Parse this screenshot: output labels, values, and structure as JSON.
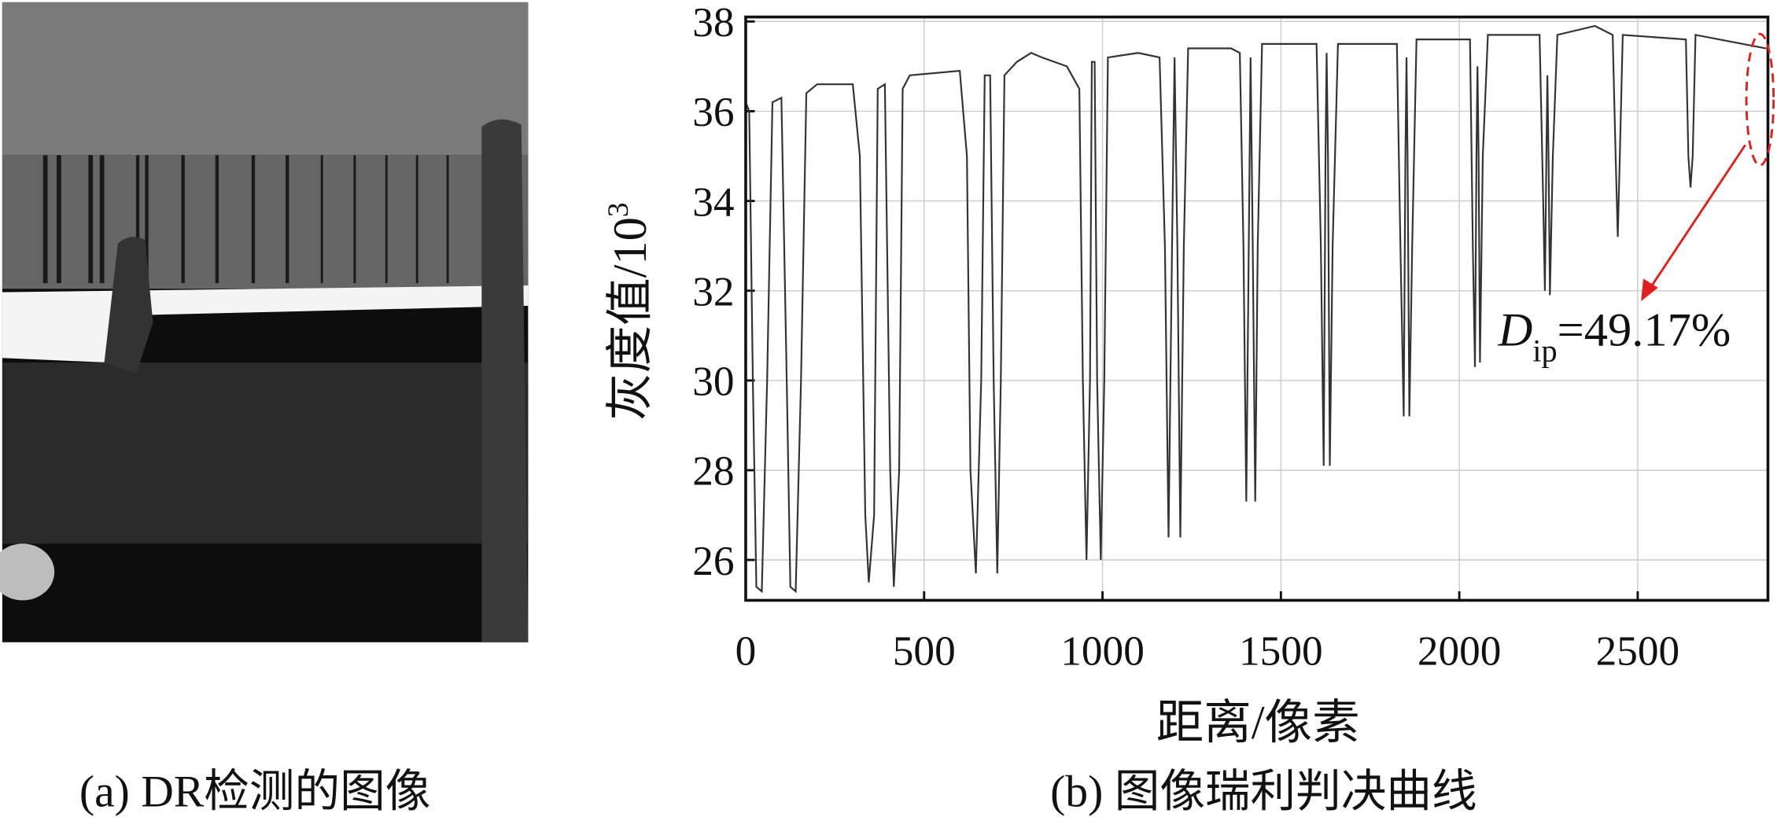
{
  "image_panel": {
    "caption": "(a) DR检测的图像"
  },
  "chart_data": {
    "type": "line",
    "caption": "(b) 图像瑞利判决曲线",
    "xlabel": "距离/像素",
    "ylabel": "灰度值/10",
    "ylabel_sup": "3",
    "annotation": {
      "symbol": "D",
      "subscript": "ip",
      "text": "=49.17%"
    },
    "xlim": [
      0,
      2865
    ],
    "ylim": [
      25.1,
      38.1
    ],
    "xticks": [
      0,
      500,
      1000,
      1500,
      2000,
      2500
    ],
    "yticks": [
      26,
      28,
      30,
      32,
      34,
      36,
      38
    ],
    "grid": true,
    "x": [
      0,
      10,
      20,
      30,
      45,
      60,
      75,
      100,
      115,
      125,
      140,
      155,
      170,
      200,
      300,
      320,
      335,
      345,
      360,
      370,
      390,
      405,
      415,
      430,
      440,
      460,
      600,
      620,
      630,
      645,
      660,
      670,
      685,
      695,
      705,
      715,
      725,
      760,
      800,
      830,
      900,
      935,
      945,
      955,
      965,
      970,
      978,
      985,
      995,
      1005,
      1015,
      1100,
      1160,
      1175,
      1185,
      1195,
      1202,
      1210,
      1218,
      1228,
      1240,
      1360,
      1385,
      1395,
      1403,
      1410,
      1415,
      1421,
      1428,
      1435,
      1447,
      1600,
      1612,
      1620,
      1625,
      1628,
      1632,
      1637,
      1645,
      1660,
      1825,
      1835,
      1844,
      1849,
      1852,
      1855,
      1860,
      1868,
      1880,
      2030,
      2038,
      2044,
      2048,
      2051,
      2054,
      2058,
      2066,
      2080,
      2225,
      2235,
      2240,
      2244,
      2247,
      2250,
      2254,
      2262,
      2275,
      2380,
      2430,
      2438,
      2444,
      2450,
      2458,
      2635,
      2642,
      2648,
      2654,
      2662,
      2860
    ],
    "series": [
      {
        "name": "灰度值",
        "color": "#333333",
        "values": [
          36.2,
          36.0,
          30,
          25.4,
          25.3,
          30,
          36.2,
          36.3,
          30,
          25.4,
          25.3,
          30,
          36.4,
          36.6,
          36.6,
          35,
          27,
          25.5,
          27,
          36.5,
          36.6,
          28,
          25.4,
          28,
          36.5,
          36.8,
          36.9,
          35,
          28,
          25.7,
          30,
          36.8,
          36.8,
          30,
          25.7,
          30,
          36.8,
          37.1,
          37.3,
          37.2,
          37.0,
          36.5,
          30,
          26.0,
          30,
          37.1,
          37.1,
          30,
          26.0,
          30,
          37.2,
          37.3,
          37.2,
          33,
          26.5,
          33,
          37.2,
          33,
          26.5,
          33,
          37.4,
          37.4,
          37.3,
          33,
          27.3,
          33,
          37.2,
          33,
          27.3,
          33,
          37.5,
          37.5,
          33,
          28.1,
          35,
          37.3,
          35,
          28.1,
          33,
          37.5,
          37.5,
          33,
          29.2,
          35,
          37.2,
          35,
          29.2,
          33,
          37.6,
          37.6,
          33,
          30.3,
          35,
          37.0,
          35,
          30.4,
          35,
          37.7,
          37.7,
          34,
          32.0,
          35,
          36.8,
          35,
          31.9,
          35,
          37.7,
          37.9,
          37.7,
          35,
          33.2,
          35,
          37.7,
          37.6,
          35,
          34.3,
          35,
          37.7,
          37.4
        ]
      }
    ]
  }
}
